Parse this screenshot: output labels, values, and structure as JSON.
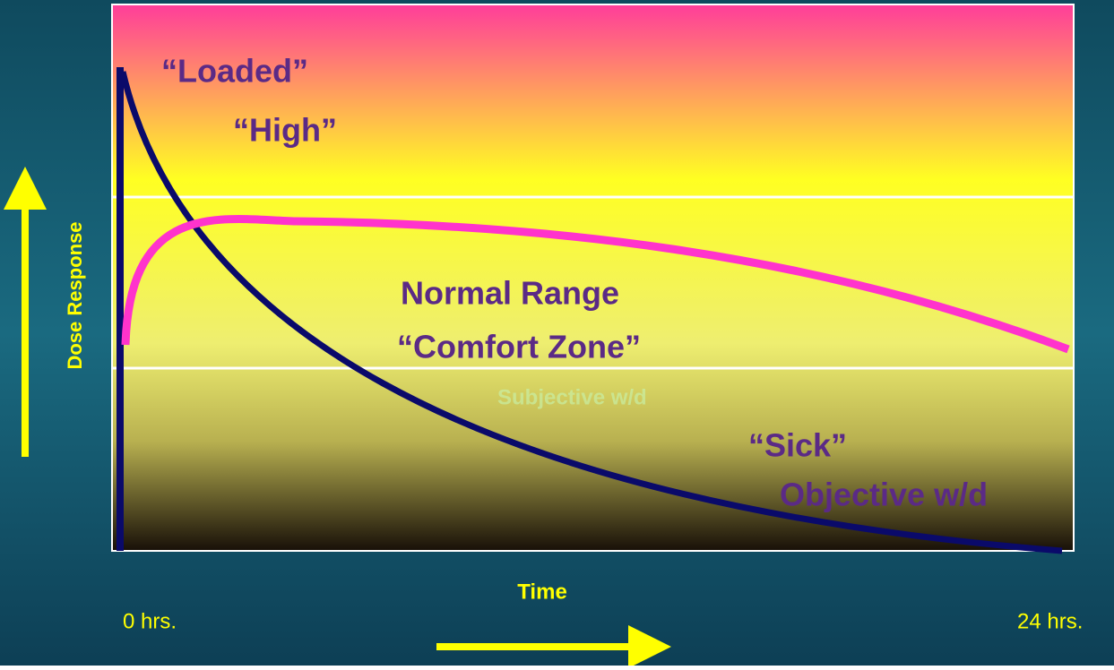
{
  "zones": {
    "loaded": "“Loaded”",
    "high": "“High”",
    "normal": "Normal Range",
    "comfort": "“Comfort Zone”",
    "subjective": "Subjective w/d",
    "sick": "“Sick”",
    "objective": "Objective w/d"
  },
  "axes": {
    "y_label": "Dose Response",
    "x_label": "Time",
    "x_start": "0 hrs.",
    "x_end": "24 hrs."
  }
}
